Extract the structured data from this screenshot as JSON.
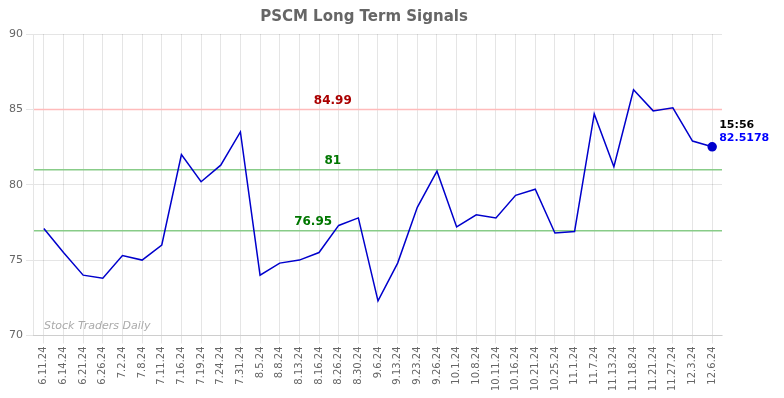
{
  "chart_data": {
    "type": "line",
    "title": "PSCM Long Term Signals",
    "categories": [
      "6.11.24",
      "6.14.24",
      "6.21.24",
      "6.26.24",
      "7.2.24",
      "7.8.24",
      "7.11.24",
      "7.16.24",
      "7.19.24",
      "7.24.24",
      "7.31.24",
      "8.5.24",
      "8.8.24",
      "8.13.24",
      "8.16.24",
      "8.26.24",
      "8.30.24",
      "9.6.24",
      "9.13.24",
      "9.23.24",
      "9.26.24",
      "10.1.24",
      "10.8.24",
      "10.11.24",
      "10.16.24",
      "10.21.24",
      "10.25.24",
      "11.1.24",
      "11.7.24",
      "11.13.24",
      "11.18.24",
      "11.21.24",
      "11.27.24",
      "12.3.24",
      "12.6.24"
    ],
    "values": [
      77.1,
      75.5,
      74.0,
      73.8,
      75.3,
      75.0,
      76.0,
      82.0,
      80.2,
      81.3,
      83.5,
      74.0,
      74.8,
      75.0,
      75.5,
      77.3,
      77.8,
      72.3,
      74.8,
      78.5,
      80.9,
      77.2,
      78.0,
      77.8,
      79.3,
      79.7,
      76.8,
      76.9,
      84.7,
      81.2,
      86.3,
      84.9,
      85.1,
      82.9,
      82.5178
    ],
    "color": "#0000cc",
    "ylim": [
      70,
      90
    ],
    "yticks": [
      70,
      75,
      80,
      85,
      90
    ],
    "grid": true,
    "reference_lines": [
      {
        "value": 84.99,
        "label": "84.99",
        "color": "#ffbbbb",
        "label_color": "#aa0000"
      },
      {
        "value": 81.0,
        "label": "81",
        "color": "#88cc88",
        "label_color": "#007700"
      },
      {
        "value": 76.95,
        "label": "76.95",
        "color": "#88cc88",
        "label_color": "#007700"
      }
    ],
    "last_point_labels": [
      {
        "text": "15:56",
        "color": "#000000"
      },
      {
        "text": "82.5178",
        "color": "#0000ff"
      }
    ],
    "watermark": {
      "text": "Stock Traders Daily",
      "color": "#aaaaaa"
    }
  }
}
